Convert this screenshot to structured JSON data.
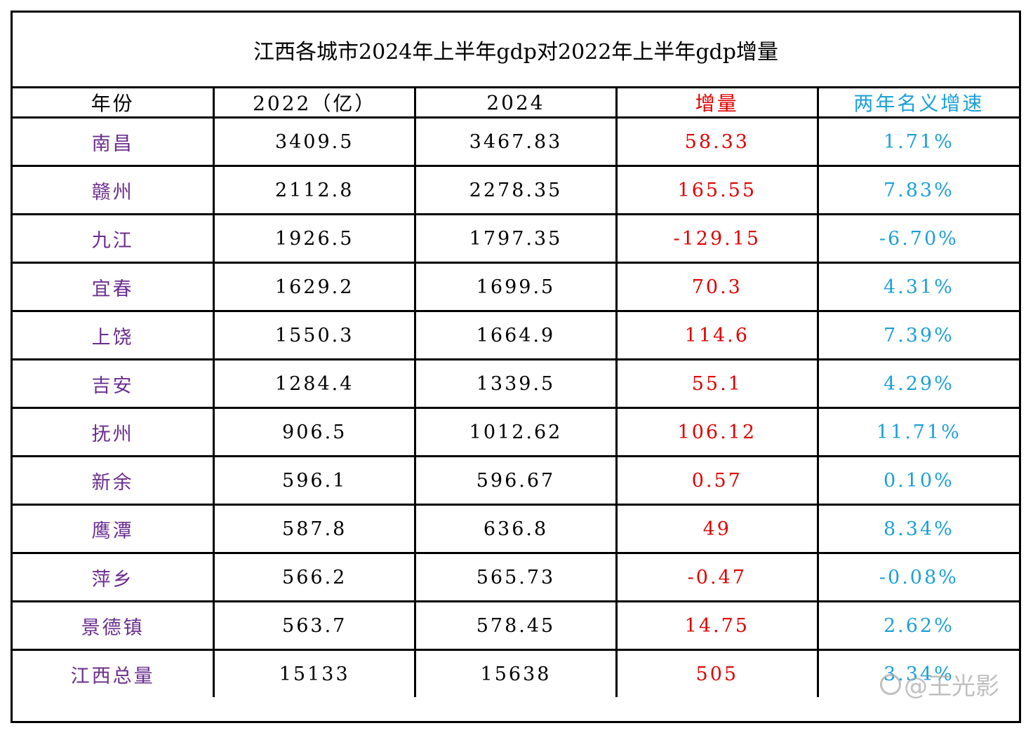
{
  "chart_data": {
    "type": "table",
    "title": "江西各城市2024年上半年gdp对2022年上半年gdp增量",
    "columns": [
      "年份",
      "2022（亿）",
      "2024",
      "增量",
      "两年名义增速"
    ],
    "rows": [
      [
        "南昌",
        "3409.5",
        "3467.83",
        "58.33",
        "1.71%"
      ],
      [
        "赣州",
        "2112.8",
        "2278.35",
        "165.55",
        "7.83%"
      ],
      [
        "九江",
        "1926.5",
        "1797.35",
        "-129.15",
        "-6.70%"
      ],
      [
        "宜春",
        "1629.2",
        "1699.5",
        "70.3",
        "4.31%"
      ],
      [
        "上饶",
        "1550.3",
        "1664.9",
        "114.6",
        "7.39%"
      ],
      [
        "吉安",
        "1284.4",
        "1339.5",
        "55.1",
        "4.29%"
      ],
      [
        "抚州",
        "906.5",
        "1012.62",
        "106.12",
        "11.71%"
      ],
      [
        "新余",
        "596.1",
        "596.67",
        "0.57",
        "0.10%"
      ],
      [
        "鹰潭",
        "587.8",
        "636.8",
        "49",
        "8.34%"
      ],
      [
        "萍乡",
        "566.2",
        "565.73",
        "-0.47",
        "-0.08%"
      ],
      [
        "景德镇",
        "563.7",
        "578.45",
        "14.75",
        "2.62%"
      ],
      [
        "江西总量",
        "15133",
        "15638",
        "505",
        "3.34%"
      ]
    ]
  },
  "colors": {
    "header_text": "#000000",
    "city_text": "#6a2d8f",
    "value_text": "#000000",
    "increase_text": "#e00000",
    "rate_text": "#1aa0d8"
  },
  "watermark": {
    "text": "@王光影"
  }
}
